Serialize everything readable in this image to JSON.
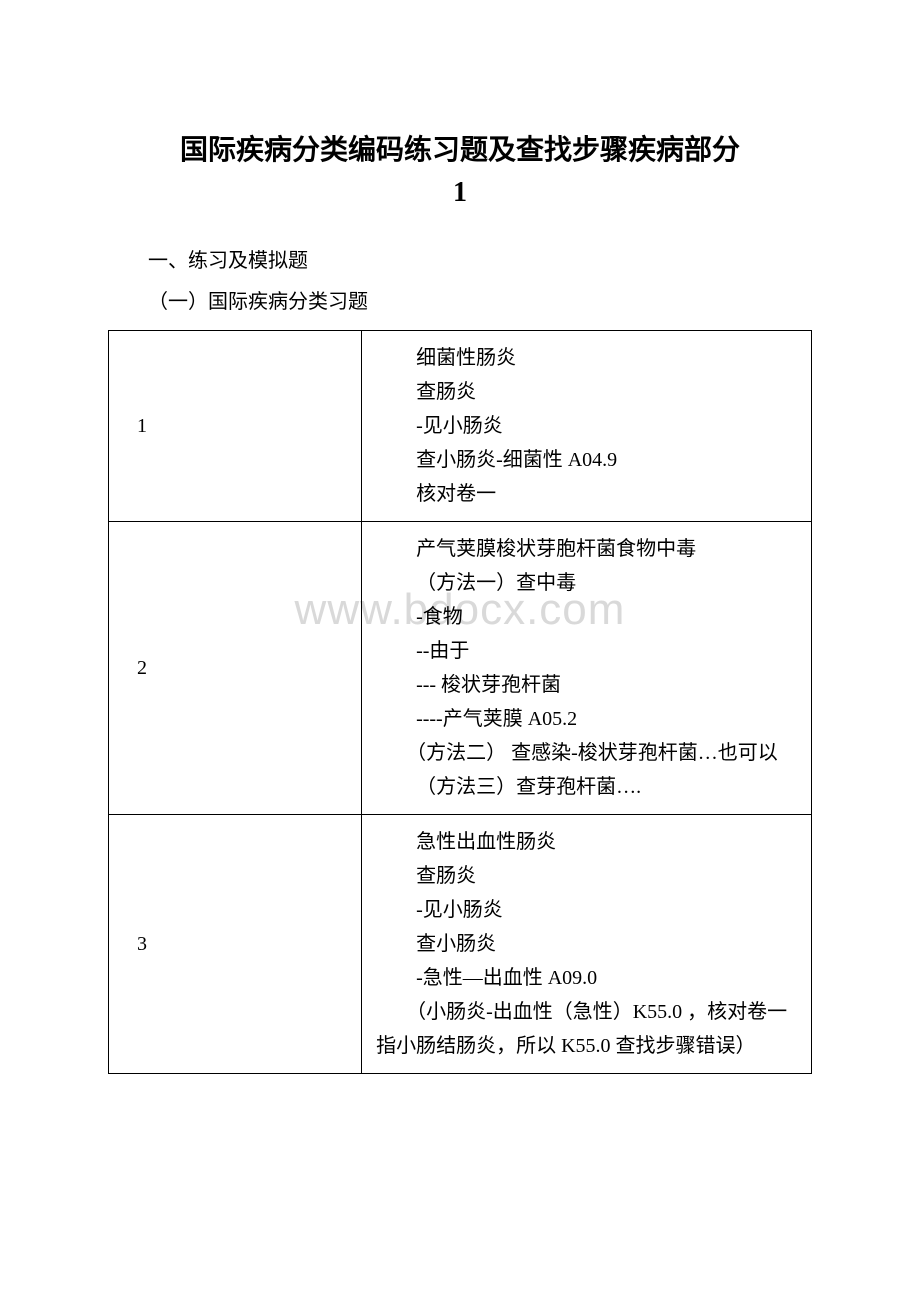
{
  "title_line1": "国际疾病分类编码练习题及查找步骤疾病部分",
  "title_line2": "1",
  "section_heading": "一、练习及模拟题",
  "subsection_heading": "（一）国际疾病分类习题",
  "watermark_text": "www.bdocx.com",
  "table": {
    "rows": [
      {
        "num": "1",
        "lines": [
          {
            "text": "细菌性肠炎",
            "indent": 1
          },
          {
            "text": "查肠炎",
            "indent": 1
          },
          {
            "text": "-见小肠炎",
            "indent": 1
          },
          {
            "text": "查小肠炎-细菌性 A04.9",
            "indent": 1
          },
          {
            "text": "核对卷一",
            "indent": 1
          }
        ]
      },
      {
        "num": "2",
        "lines": [
          {
            "text": "　　产气荚膜梭状芽胞杆菌食物中毒",
            "indent": 0
          },
          {
            "text": "（方法一）查中毒",
            "indent": 1
          },
          {
            "text": "-食物",
            "indent": 1
          },
          {
            "text": "--由于",
            "indent": 1
          },
          {
            "text": "--- 梭状芽孢杆菌",
            "indent": 1
          },
          {
            "text": "----产气荚膜 A05.2",
            "indent": 1
          },
          {
            "text": "　　（方法二） 查感染-梭状芽孢杆菌…也可以",
            "indent": 0
          },
          {
            "text": "（方法三）查芽孢杆菌….",
            "indent": 1
          }
        ]
      },
      {
        "num": "3",
        "lines": [
          {
            "text": "急性出血性肠炎",
            "indent": 1
          },
          {
            "text": "查肠炎",
            "indent": 1
          },
          {
            "text": "-见小肠炎",
            "indent": 1
          },
          {
            "text": "查小肠炎",
            "indent": 1
          },
          {
            "text": "-急性—出血性 A09.0",
            "indent": 1
          },
          {
            "text": "　　（小肠炎-出血性（急性）K55.0 ，核对卷一指小肠结肠炎，所以 K55.0 查找步骤错误）",
            "indent": 0
          }
        ]
      }
    ]
  },
  "colors": {
    "background": "#ffffff",
    "text": "#000000",
    "border": "#000000",
    "watermark": "#d9d9d9"
  },
  "typography": {
    "title_fontsize": 28,
    "body_fontsize": 20,
    "watermark_fontsize": 44
  }
}
